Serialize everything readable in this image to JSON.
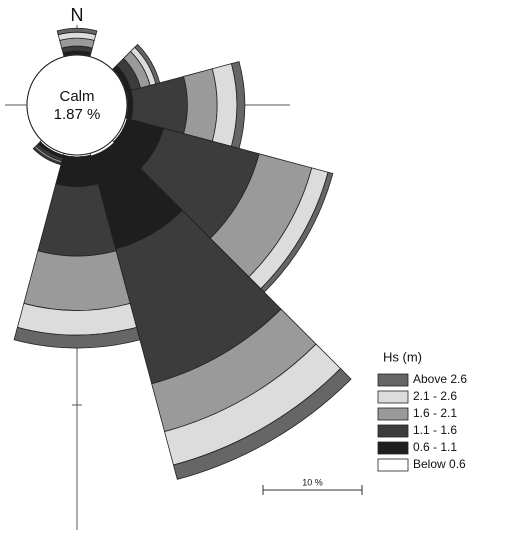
{
  "chart_data": {
    "type": "rose",
    "categories": [
      "N",
      null,
      null,
      null,
      null,
      null,
      null,
      null,
      null,
      null,
      null,
      null
    ],
    "series": [
      {
        "name": "Below 0.6",
        "color": "#ffffff",
        "values": [
          0.1,
          0,
          0.1,
          0.1,
          0.2,
          0.3,
          0.2,
          0.2,
          0,
          0,
          0,
          0
        ]
      },
      {
        "name": "0.6 - 1.1",
        "color": "#1e1e1e",
        "values": [
          0.3,
          0,
          0.5,
          0.5,
          3.8,
          9.7,
          3,
          0.3,
          0,
          0,
          0,
          0
        ]
      },
      {
        "name": "1.1 - 1.6",
        "color": "#3c3c3c",
        "values": [
          0.5,
          0,
          1,
          5.5,
          10,
          14.1,
          7,
          0.3,
          0,
          0,
          0,
          0
        ]
      },
      {
        "name": "1.6 - 2.1",
        "color": "#9a9a9a",
        "values": [
          0.8,
          0,
          1,
          3,
          5.5,
          5,
          5.5,
          0.2,
          0,
          0,
          0,
          0
        ]
      },
      {
        "name": "2.1 - 2.6",
        "color": "#dcdcdc",
        "values": [
          0.6,
          0,
          0.6,
          2,
          1.7,
          3.5,
          2.5,
          0.1,
          0,
          0,
          0,
          0
        ]
      },
      {
        "name": "Above 2.6",
        "color": "#666666",
        "values": [
          0.4,
          0,
          0.4,
          0.8,
          0.5,
          1.5,
          1.3,
          0.1,
          0,
          0,
          0,
          0
        ]
      }
    ],
    "legend_title": "Hs (m)",
    "calm_label": "Calm",
    "calm": 1.87,
    "calm_value_label": "1.87 %",
    "scale_bar": {
      "value": 10,
      "label": "10 %"
    }
  }
}
